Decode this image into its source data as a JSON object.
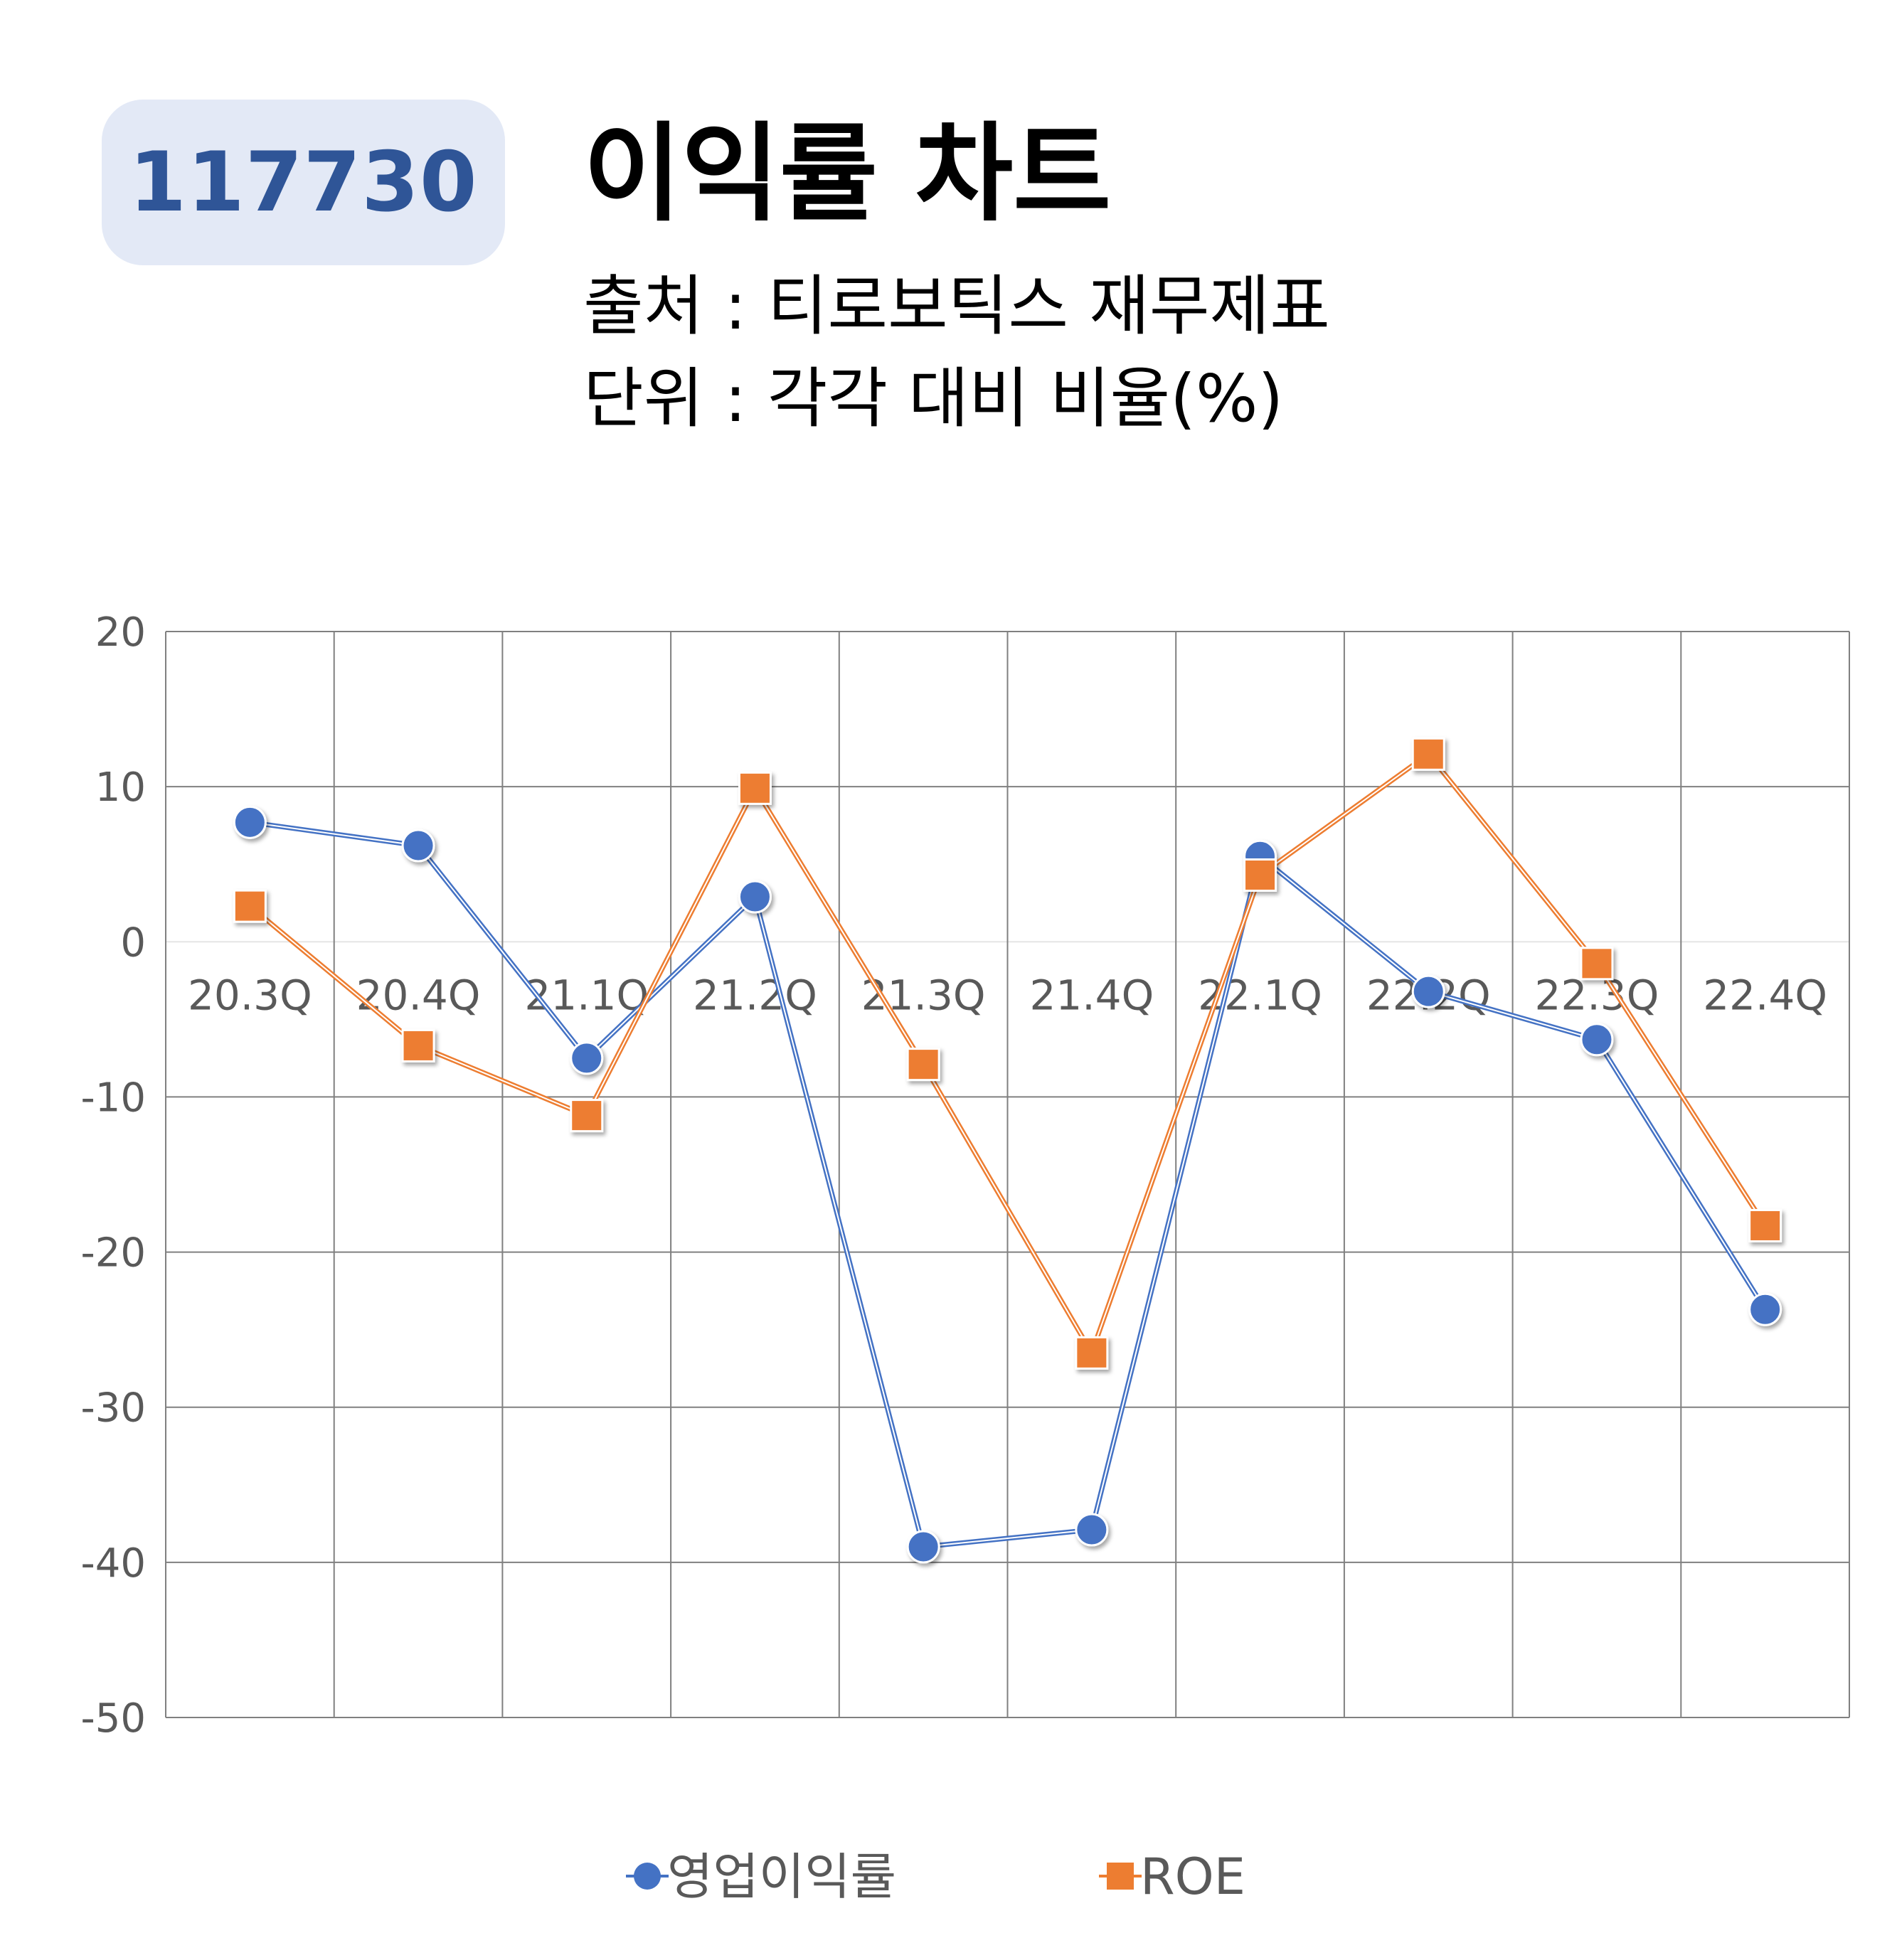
{
  "header": {
    "code": "117730",
    "title": "이익률 차트",
    "source_line": "출처 : 티로보틱스 재무제표",
    "unit_line": "단위 : 각각 대비 비율(%)"
  },
  "colors": {
    "badge_bg": "#e3e9f6",
    "badge_text": "#2f5597",
    "series_1": "#4472c4",
    "series_2": "#ed7d31",
    "grid": "#808080",
    "tick_text": "#595959"
  },
  "chart_data": {
    "type": "line",
    "categories": [
      "20.3Q",
      "20.4Q",
      "21.1Q",
      "21.2Q",
      "21.3Q",
      "21.4Q",
      "22.1Q",
      "22.2Q",
      "22.3Q",
      "22.4Q"
    ],
    "series": [
      {
        "name": "영업이익률",
        "marker": "circle",
        "color": "#4472c4",
        "values": [
          7.7,
          6.2,
          -7.5,
          2.9,
          -39.0,
          -37.9,
          5.5,
          -3.2,
          -6.3,
          -23.7
        ]
      },
      {
        "name": "ROE",
        "marker": "square",
        "color": "#ed7d31",
        "values": [
          2.3,
          -6.7,
          -11.2,
          9.9,
          -7.9,
          -26.5,
          4.3,
          12.1,
          -1.4,
          -18.3
        ]
      }
    ],
    "ylim": [
      -50,
      20
    ],
    "yticks": [
      "20",
      "10",
      "0",
      "-10",
      "-20",
      "-30",
      "-40",
      "-50"
    ],
    "ytick_values": [
      20,
      10,
      0,
      -10,
      -20,
      -30,
      -40,
      -50
    ],
    "grid": true,
    "legend_position": "bottom"
  }
}
